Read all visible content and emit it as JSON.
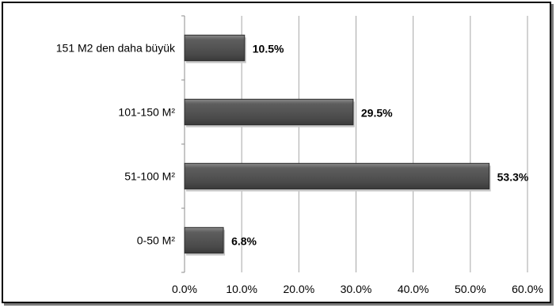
{
  "chart_data": {
    "type": "bar",
    "orientation": "horizontal",
    "categories": [
      "0-50 M²",
      "51-100 M²",
      "101-150 M²",
      "151 M2 den daha büyük"
    ],
    "values": [
      6.8,
      53.3,
      29.5,
      10.5
    ],
    "data_labels": [
      "6.8%",
      "53.3%",
      "29.5%",
      "10.5%"
    ],
    "x_ticks": [
      "0.0%",
      "10.0%",
      "20.0%",
      "30.0%",
      "40.0%",
      "50.0%",
      "60.0%"
    ],
    "xlim": [
      0,
      60
    ],
    "grid": true,
    "legend": "none",
    "colors": {
      "bar": "#555555",
      "bar_edge": "#2b2b2b",
      "grid": "#a6a6a6",
      "axis": "#8c8c8c"
    }
  }
}
